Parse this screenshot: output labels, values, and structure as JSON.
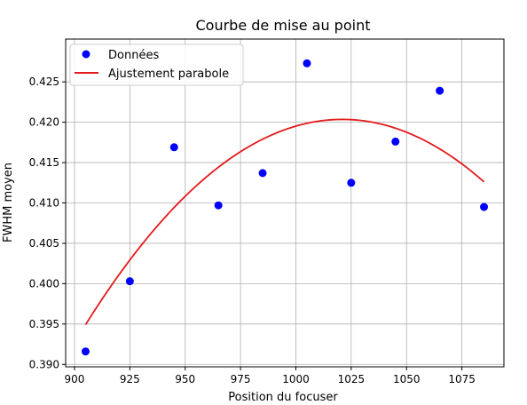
{
  "chart_data": {
    "type": "scatter",
    "title": "Courbe de mise au point",
    "xlabel": "Position du focuser",
    "ylabel": "FWHM moyen",
    "xlim": [
      896,
      1094
    ],
    "ylim": [
      0.3897,
      0.4303
    ],
    "xticks": [
      900,
      925,
      950,
      975,
      1000,
      1025,
      1050,
      1075
    ],
    "yticks": [
      0.39,
      0.395,
      0.4,
      0.405,
      0.41,
      0.415,
      0.42,
      0.425
    ],
    "grid": true,
    "legend_position": "top-left",
    "series": [
      {
        "name": "Données",
        "kind": "scatter",
        "color": "#0000ff",
        "x": [
          905,
          925,
          945,
          965,
          985,
          1005,
          1025,
          1045,
          1065,
          1085
        ],
        "y": [
          0.3916,
          0.4003,
          0.4169,
          0.4097,
          0.4137,
          0.4273,
          0.4125,
          0.4176,
          0.4239,
          0.4095
        ]
      },
      {
        "name": "Ajustement parabole",
        "kind": "line",
        "color": "#e31a1c",
        "fit": {
          "vertex_x": 1021,
          "vertex_y": 0.42035,
          "a": -1.89e-06
        },
        "x_range": [
          905,
          1085
        ]
      }
    ]
  }
}
